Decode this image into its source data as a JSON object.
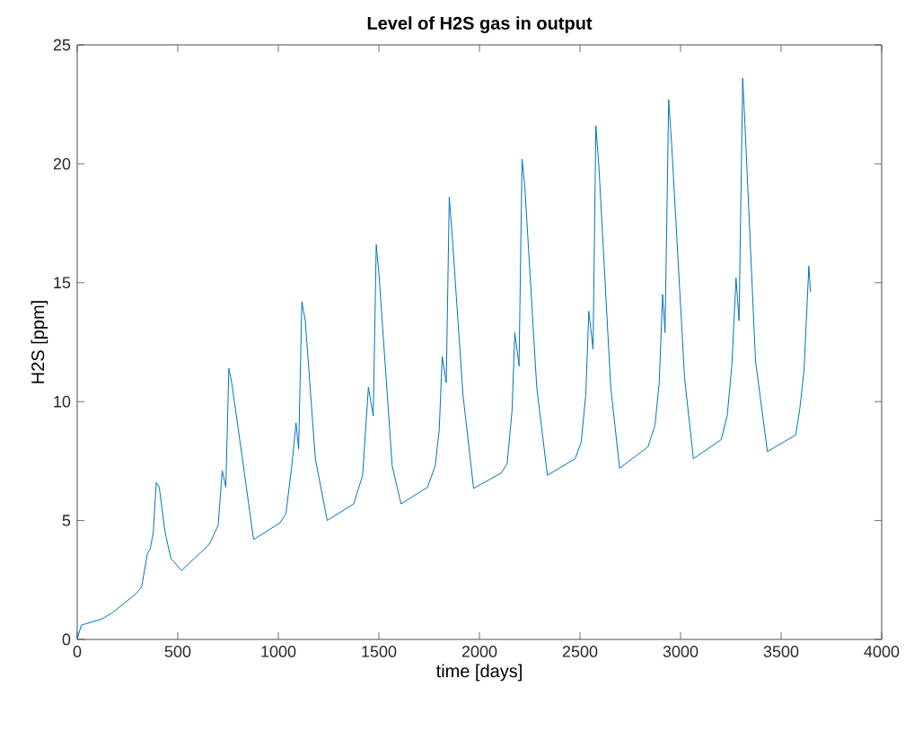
{
  "chart_data": {
    "type": "line",
    "title": "Level of H2S gas in output",
    "xlabel": "time [days]",
    "ylabel": "H2S [ppm]",
    "x": [
      0,
      20,
      120,
      171,
      290,
      320,
      349,
      363,
      378,
      393,
      408,
      437,
      466,
      519,
      657,
      701,
      721,
      739,
      754,
      768,
      818,
      877,
      1008,
      1038,
      1067,
      1088,
      1101,
      1117,
      1134,
      1184,
      1243,
      1375,
      1419,
      1448,
      1472,
      1487,
      1501,
      1566,
      1610,
      1742,
      1780,
      1800,
      1815,
      1835,
      1850,
      1862,
      1918,
      1971,
      2109,
      2138,
      2162,
      2176,
      2197,
      2212,
      2226,
      2285,
      2338,
      2476,
      2506,
      2529,
      2544,
      2565,
      2579,
      2594,
      2653,
      2697,
      2838,
      2873,
      2894,
      2911,
      2923,
      2941,
      2956,
      3020,
      3064,
      3202,
      3232,
      3255,
      3276,
      3291,
      3309,
      3320,
      3373,
      3432,
      3573,
      3593,
      3614,
      3638,
      3646
    ],
    "series": [
      {
        "color": "#0072bd",
        "values": [
          0,
          0.6,
          0.85,
          1.1,
          1.9,
          2.2,
          3.6,
          3.8,
          4.5,
          6.6,
          6.4,
          4.5,
          3.4,
          2.9,
          4.0,
          4.8,
          7.1,
          6.4,
          11.4,
          10.8,
          7.8,
          4.2,
          4.9,
          5.3,
          7.3,
          9.1,
          8.0,
          14.2,
          13.4,
          7.6,
          5.0,
          5.7,
          6.9,
          10.6,
          9.4,
          16.6,
          15.3,
          7.3,
          5.7,
          6.4,
          7.3,
          8.8,
          11.9,
          10.8,
          18.6,
          17.3,
          10.3,
          6.35,
          7.0,
          7.4,
          9.6,
          12.9,
          11.5,
          20.2,
          19.0,
          10.6,
          6.9,
          7.6,
          8.3,
          10.3,
          13.8,
          12.2,
          21.6,
          19.9,
          10.6,
          7.2,
          8.1,
          9.0,
          10.8,
          14.5,
          12.9,
          22.7,
          20.8,
          11.0,
          7.6,
          8.4,
          9.4,
          11.5,
          15.2,
          13.4,
          23.6,
          21.7,
          11.7,
          7.9,
          8.6,
          9.7,
          11.3,
          15.7,
          14.6
        ]
      }
    ],
    "xlim": [
      0,
      4000
    ],
    "xticks": [
      0,
      500,
      1000,
      1500,
      2000,
      2500,
      3000,
      3500,
      4000
    ],
    "ylim": [
      0,
      25
    ],
    "yticks": [
      0,
      5,
      10,
      15,
      20,
      25
    ],
    "grid": false
  }
}
